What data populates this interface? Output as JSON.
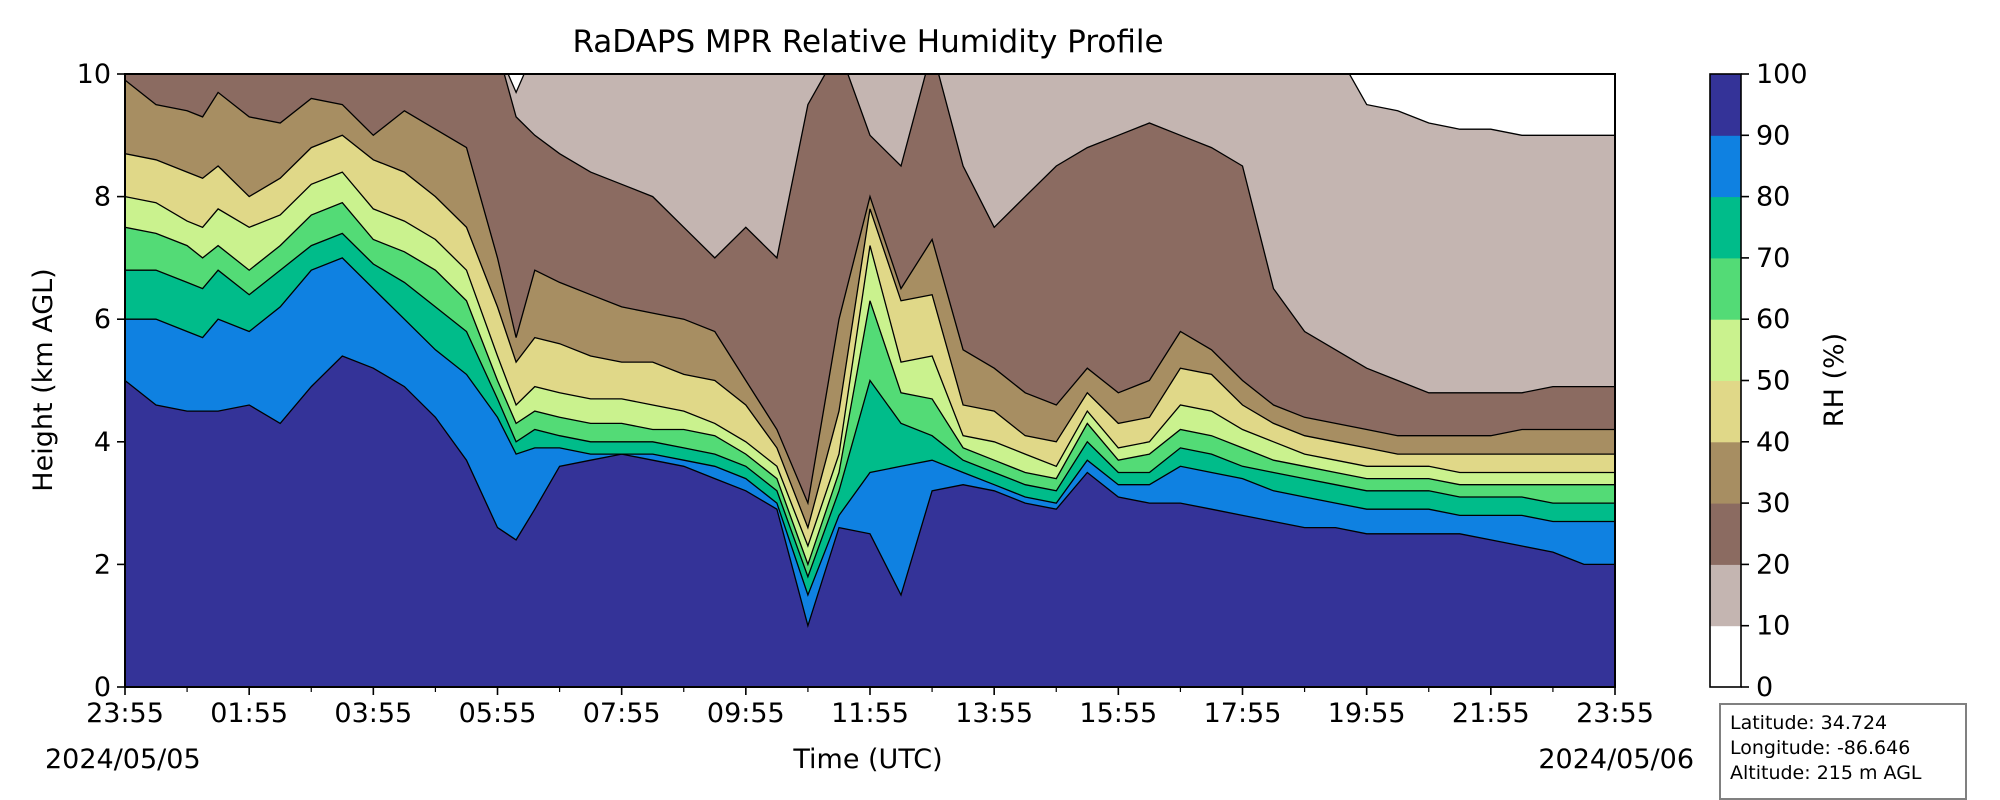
{
  "chart_data": {
    "type": "heatmap",
    "title": "RaDAPS MPR Relative Humidity Profile",
    "xlabel": "Time (UTC)",
    "ylabel": "Height (km AGL)",
    "colorbar_label": "RH (%)",
    "x_tick_labels": [
      "23:55",
      "01:55",
      "03:55",
      "05:55",
      "07:55",
      "09:55",
      "11:55",
      "13:55",
      "15:55",
      "17:55",
      "19:55",
      "21:55",
      "23:55"
    ],
    "x_range": [
      "2024-05-05 23:55",
      "2024-05-06 23:55"
    ],
    "date_start": "2024/05/05",
    "date_end": "2024/05/06",
    "ylim": [
      0,
      10
    ],
    "y_ticks": [
      0,
      2,
      4,
      6,
      8,
      10
    ],
    "colorbar_ticks": [
      0,
      10,
      20,
      30,
      40,
      50,
      60,
      70,
      80,
      90,
      100
    ],
    "levels": [
      0,
      10,
      20,
      30,
      40,
      50,
      60,
      70,
      80,
      90,
      100
    ],
    "level_colors": [
      "#ffffff",
      "#c4b5b1",
      "#8b6b61",
      "#a78e62",
      "#e0d888",
      "#caf28e",
      "#53db76",
      "#00bc8a",
      "#0f81e1",
      "#343398"
    ],
    "time_hours": [
      0,
      0.5,
      1,
      1.25,
      1.5,
      2,
      2.5,
      3,
      3.5,
      4,
      4.5,
      5,
      5.5,
      6,
      6.3,
      6.6,
      7,
      7.5,
      8,
      8.5,
      9,
      9.5,
      10,
      10.5,
      11,
      11.5,
      12,
      12.5,
      13,
      13.5,
      14,
      14.5,
      15,
      15.5,
      16,
      16.5,
      17,
      17.5,
      18,
      18.5,
      19,
      19.5,
      20,
      20.5,
      21,
      21.5,
      22,
      22.5,
      23,
      23.5,
      24
    ],
    "contour_heights_km": [
      [
        10.4,
        10.4,
        10.4,
        10.4,
        10.4,
        10.4,
        10.4,
        10.4,
        10.4,
        10.4,
        10.4,
        10.4,
        10.4,
        10.4,
        9.7,
        10.4,
        10.4,
        10.4,
        10.4,
        10.4,
        10.4,
        10.4,
        10.4,
        10.4,
        10.4,
        10.4,
        10.4,
        10.4,
        10.4,
        10.4,
        10.4,
        10.4,
        10.4,
        10.4,
        10.4,
        10.4,
        10.4,
        10.4,
        10.4,
        10.4,
        10.4,
        10.4,
        9.5,
        9.4,
        9.2,
        9.1,
        9.1,
        9.0,
        9.0,
        9.0,
        9.0
      ],
      [
        10.4,
        10.4,
        10.4,
        10.4,
        10.4,
        10.4,
        10.4,
        10.4,
        10.4,
        10.4,
        10.4,
        10.4,
        10.4,
        10.4,
        9.3,
        9.0,
        8.7,
        8.4,
        8.2,
        8.0,
        7.5,
        7.0,
        7.5,
        7.0,
        9.5,
        10.4,
        9.0,
        8.5,
        10.4,
        8.5,
        7.5,
        8.0,
        8.5,
        8.8,
        9.0,
        9.2,
        9.0,
        8.8,
        8.5,
        6.5,
        5.8,
        5.5,
        5.2,
        5.0,
        4.8,
        4.8,
        4.8,
        4.8,
        4.9,
        4.9,
        4.9
      ],
      [
        9.9,
        9.5,
        9.4,
        9.3,
        9.7,
        9.3,
        9.2,
        9.6,
        9.5,
        9.0,
        9.4,
        9.1,
        8.8,
        7.0,
        5.7,
        6.8,
        6.6,
        6.4,
        6.2,
        6.1,
        6.0,
        5.8,
        5.0,
        4.2,
        3.0,
        6.0,
        8.0,
        6.5,
        7.3,
        5.5,
        5.2,
        4.8,
        4.6,
        5.2,
        4.8,
        5.0,
        5.8,
        5.5,
        5.0,
        4.6,
        4.4,
        4.3,
        4.2,
        4.1,
        4.1,
        4.1,
        4.1,
        4.2,
        4.2,
        4.2,
        4.2
      ],
      [
        8.7,
        8.6,
        8.4,
        8.3,
        8.5,
        8.0,
        8.3,
        8.8,
        9.0,
        8.6,
        8.4,
        8.0,
        7.5,
        6.2,
        5.3,
        5.7,
        5.6,
        5.4,
        5.3,
        5.3,
        5.1,
        5.0,
        4.6,
        3.9,
        2.6,
        4.5,
        7.8,
        6.3,
        6.4,
        4.6,
        4.5,
        4.1,
        4.0,
        4.8,
        4.3,
        4.4,
        5.2,
        5.1,
        4.6,
        4.3,
        4.1,
        4.0,
        3.9,
        3.8,
        3.8,
        3.8,
        3.8,
        3.8,
        3.8,
        3.8,
        3.8
      ],
      [
        8.0,
        7.9,
        7.6,
        7.5,
        7.8,
        7.5,
        7.7,
        8.2,
        8.4,
        7.8,
        7.6,
        7.3,
        6.8,
        5.4,
        4.6,
        4.9,
        4.8,
        4.7,
        4.7,
        4.6,
        4.5,
        4.3,
        4.0,
        3.6,
        2.3,
        3.8,
        7.2,
        5.3,
        5.4,
        4.1,
        4.0,
        3.8,
        3.6,
        4.5,
        3.9,
        4.0,
        4.6,
        4.5,
        4.2,
        4.0,
        3.8,
        3.7,
        3.6,
        3.6,
        3.6,
        3.5,
        3.5,
        3.5,
        3.5,
        3.5,
        3.5
      ],
      [
        7.5,
        7.4,
        7.2,
        7.0,
        7.2,
        6.8,
        7.2,
        7.7,
        7.9,
        7.3,
        7.1,
        6.8,
        6.3,
        5.0,
        4.3,
        4.5,
        4.4,
        4.3,
        4.3,
        4.2,
        4.2,
        4.1,
        3.8,
        3.4,
        2.0,
        3.5,
        6.3,
        4.8,
        4.7,
        3.9,
        3.7,
        3.5,
        3.4,
        4.3,
        3.7,
        3.8,
        4.2,
        4.1,
        3.9,
        3.7,
        3.6,
        3.5,
        3.4,
        3.4,
        3.4,
        3.3,
        3.3,
        3.3,
        3.3,
        3.3,
        3.3
      ],
      [
        6.8,
        6.8,
        6.6,
        6.5,
        6.8,
        6.4,
        6.8,
        7.2,
        7.4,
        6.9,
        6.6,
        6.2,
        5.8,
        4.7,
        4.0,
        4.2,
        4.1,
        4.0,
        4.0,
        4.0,
        3.9,
        3.8,
        3.6,
        3.2,
        1.8,
        3.2,
        5.0,
        4.3,
        4.1,
        3.7,
        3.5,
        3.3,
        3.2,
        4.0,
        3.5,
        3.5,
        3.9,
        3.8,
        3.6,
        3.5,
        3.4,
        3.3,
        3.2,
        3.2,
        3.2,
        3.1,
        3.1,
        3.1,
        3.0,
        3.0,
        3.0
      ],
      [
        6.0,
        6.0,
        5.8,
        5.7,
        6.0,
        5.8,
        6.2,
        6.8,
        7.0,
        6.5,
        6.0,
        5.5,
        5.1,
        4.4,
        3.8,
        3.9,
        3.9,
        3.8,
        3.8,
        3.8,
        3.7,
        3.6,
        3.4,
        3.0,
        1.5,
        2.8,
        3.5,
        3.6,
        3.7,
        3.5,
        3.3,
        3.1,
        3.0,
        3.7,
        3.3,
        3.3,
        3.6,
        3.5,
        3.4,
        3.2,
        3.1,
        3.0,
        2.9,
        2.9,
        2.9,
        2.8,
        2.8,
        2.8,
        2.7,
        2.7,
        2.7
      ],
      [
        5.0,
        4.6,
        4.5,
        4.5,
        4.5,
        4.6,
        4.3,
        4.9,
        5.4,
        5.2,
        4.9,
        4.4,
        3.7,
        2.6,
        2.4,
        2.9,
        3.6,
        3.7,
        3.8,
        3.7,
        3.6,
        3.4,
        3.2,
        2.9,
        1.0,
        2.6,
        2.5,
        1.5,
        3.2,
        3.3,
        3.2,
        3.0,
        2.9,
        3.5,
        3.1,
        3.0,
        3.0,
        2.9,
        2.8,
        2.7,
        2.6,
        2.6,
        2.5,
        2.5,
        2.5,
        2.5,
        2.4,
        2.3,
        2.2,
        2.0,
        2.0
      ]
    ]
  },
  "info_box": {
    "latitude": "Latitude: 34.724",
    "longitude": "Longitude: -86.646",
    "altitude": "Altitude: 215 m AGL"
  }
}
